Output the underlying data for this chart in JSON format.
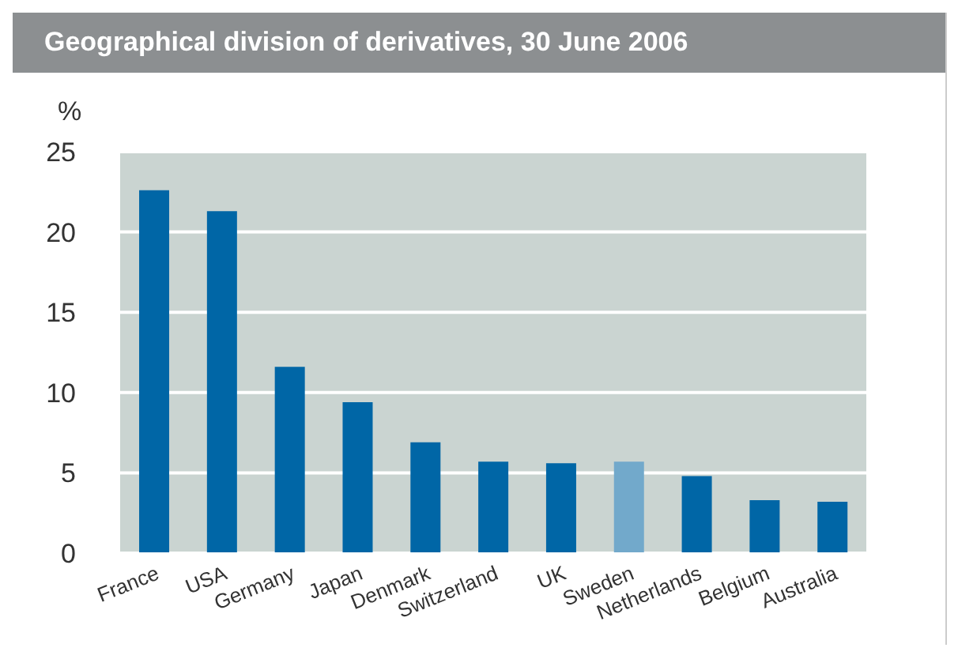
{
  "chart_data": {
    "type": "bar",
    "title": "Geographical division of derivatives, 30 June 2006",
    "ylabel": "%",
    "categories": [
      "France",
      "USA",
      "Germany",
      "Japan",
      "Denmark",
      "Switzerland",
      "UK",
      "Sweden",
      "Netherlands",
      "Belgium",
      "Australia"
    ],
    "values": [
      22.6,
      21.3,
      11.6,
      9.4,
      6.9,
      5.7,
      5.6,
      5.7,
      4.8,
      3.3,
      3.2
    ],
    "colors": [
      "#0066a6",
      "#0066a6",
      "#0066a6",
      "#0066a6",
      "#0066a6",
      "#0066a6",
      "#0066a6",
      "#72a9cb",
      "#0066a6",
      "#0066a6",
      "#0066a6"
    ],
    "ylim": [
      0,
      25
    ],
    "yticks": [
      0,
      5,
      10,
      15,
      20,
      25
    ],
    "grid": "y"
  }
}
